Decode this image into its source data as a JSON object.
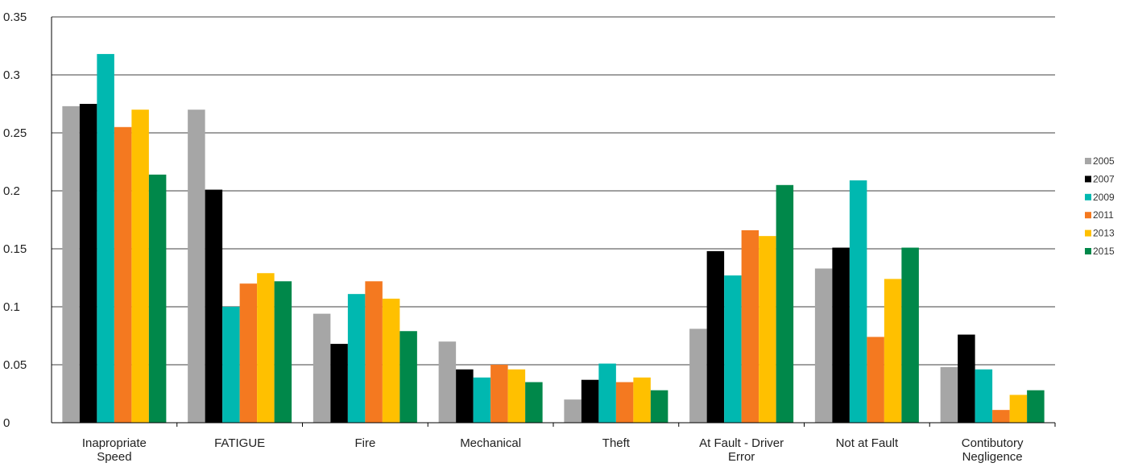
{
  "chart_data": {
    "type": "bar",
    "title": "",
    "xlabel": "",
    "ylabel": "",
    "ylim": [
      0,
      0.35
    ],
    "yticks": [
      "0",
      "0.05",
      "0.1",
      "0.15",
      "0.2",
      "0.25",
      "0.3",
      "0.35"
    ],
    "ytick_values": [
      0,
      0.05,
      0.1,
      0.15,
      0.2,
      0.25,
      0.3,
      0.35
    ],
    "grid": true,
    "legend_position": "right",
    "categories": [
      [
        "Inapropriate",
        "Speed"
      ],
      [
        "FATIGUE"
      ],
      [
        "Fire"
      ],
      [
        "Mechanical"
      ],
      [
        "Theft"
      ],
      [
        "At Fault - Driver",
        "Error"
      ],
      [
        "Not at Fault"
      ],
      [
        "Contibutory",
        "Negligence"
      ]
    ],
    "series": [
      {
        "name": "2005",
        "color": "#a6a6a6",
        "values": [
          0.273,
          0.27,
          0.094,
          0.07,
          0.02,
          0.081,
          0.133,
          0.048
        ]
      },
      {
        "name": "2007",
        "color": "#000000",
        "values": [
          0.275,
          0.201,
          0.068,
          0.046,
          0.037,
          0.148,
          0.151,
          0.076
        ]
      },
      {
        "name": "2009",
        "color": "#00b8b0",
        "values": [
          0.318,
          0.1,
          0.111,
          0.039,
          0.051,
          0.127,
          0.209,
          0.046
        ]
      },
      {
        "name": "2011",
        "color": "#f47920",
        "values": [
          0.255,
          0.12,
          0.122,
          0.05,
          0.035,
          0.166,
          0.074,
          0.011
        ]
      },
      {
        "name": "2013",
        "color": "#ffc000",
        "values": [
          0.27,
          0.129,
          0.107,
          0.046,
          0.039,
          0.161,
          0.124,
          0.024
        ]
      },
      {
        "name": "2015",
        "color": "#00884a",
        "values": [
          0.214,
          0.122,
          0.079,
          0.035,
          0.028,
          0.205,
          0.151,
          0.028
        ]
      }
    ]
  }
}
